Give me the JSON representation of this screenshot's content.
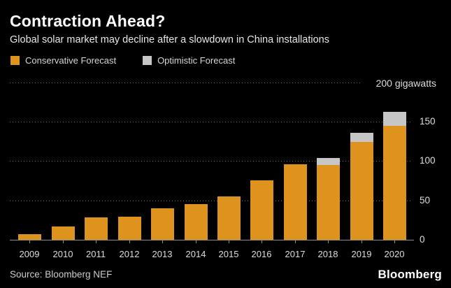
{
  "header": {
    "title": "Contraction Ahead?",
    "subtitle": "Global solar market may decline after a slowdown in China installations"
  },
  "legend": {
    "items": [
      {
        "label": "Conservative Forecast",
        "color": "#df931f"
      },
      {
        "label": "Optimistic Forecast",
        "color": "#c6c6c6"
      }
    ]
  },
  "chart_data": {
    "type": "bar",
    "stacked": true,
    "unit": "gigawatts",
    "categories": [
      "2009",
      "2010",
      "2011",
      "2012",
      "2013",
      "2014",
      "2015",
      "2016",
      "2017",
      "2018",
      "2019",
      "2020"
    ],
    "series": [
      {
        "name": "Conservative Forecast",
        "color": "#df931f",
        "values": [
          7,
          17,
          28,
          29,
          40,
          45,
          55,
          75,
          96,
          95,
          124,
          145
        ]
      },
      {
        "name": "Optimistic Forecast",
        "color": "#c6c6c6",
        "note": "totals including optimistic upside, drawn as gray cap above conservative bar",
        "values": [
          null,
          null,
          null,
          null,
          null,
          null,
          null,
          null,
          null,
          104,
          136,
          162
        ]
      }
    ],
    "ylim": [
      0,
      200
    ],
    "yticks": [
      0,
      50,
      100,
      150
    ],
    "ytick_top_label": "200 gigawatts",
    "grid": "dotted horizontal",
    "legend_position": "top-left",
    "axis_label_side": "right"
  },
  "footer": {
    "source": "Source: Bloomberg NEF",
    "brand": "Bloomberg"
  },
  "colors": {
    "background": "#000000",
    "title": "#ffffff",
    "subtitle": "#e7e7e7",
    "axis_labels": "#dcdcdc",
    "axis_line": "#8f8f8f",
    "gridline_dots": "#6e6e6e",
    "conservative_bar": "#df931f",
    "optimistic_bar": "#c6c6c6"
  }
}
